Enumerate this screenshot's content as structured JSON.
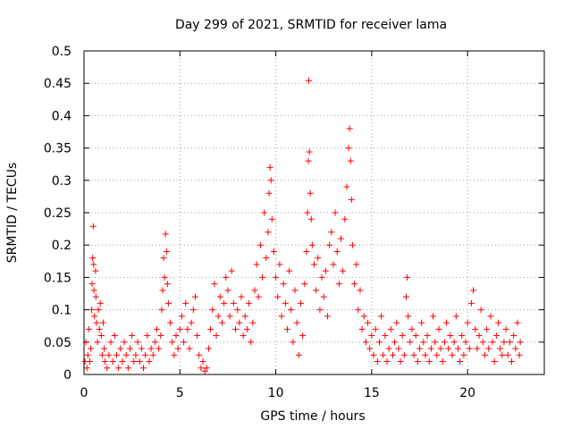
{
  "chart_data": {
    "type": "scatter",
    "title": "Day 299 of 2021, SRMTID for receiver lama",
    "xlabel": "GPS time / hours",
    "ylabel": "SRMTID / TECUs",
    "xlim": [
      0,
      24
    ],
    "ylim": [
      0,
      0.5
    ],
    "xticks": [
      0,
      5,
      10,
      15,
      20
    ],
    "xtick_labels": [
      "0",
      "5",
      "10",
      "15",
      "20"
    ],
    "yticks": [
      0,
      0.05,
      0.1,
      0.15,
      0.2,
      0.25,
      0.3,
      0.35,
      0.4,
      0.45,
      0.5
    ],
    "ytick_labels": [
      "0",
      "0.05",
      "0.1",
      "0.15",
      "0.2",
      "0.25",
      "0.3",
      "0.35",
      "0.4",
      "0.45",
      "0.5"
    ],
    "grid": true,
    "marker": "plus",
    "color": "#ff0000",
    "series": [
      {
        "name": "SRMTID",
        "points": [
          [
            0.05,
            0.02
          ],
          [
            0.1,
            0.05
          ],
          [
            0.15,
            0.01
          ],
          [
            0.2,
            0.03
          ],
          [
            0.25,
            0.07
          ],
          [
            0.3,
            0.02
          ],
          [
            0.35,
            0.04
          ],
          [
            0.4,
            0.1
          ],
          [
            0.42,
            0.14
          ],
          [
            0.45,
            0.18
          ],
          [
            0.48,
            0.229
          ],
          [
            0.5,
            0.17
          ],
          [
            0.52,
            0.13
          ],
          [
            0.55,
            0.09
          ],
          [
            0.6,
            0.16
          ],
          [
            0.62,
            0.12
          ],
          [
            0.65,
            0.08
          ],
          [
            0.7,
            0.05
          ],
          [
            0.75,
            0.1
          ],
          [
            0.8,
            0.07
          ],
          [
            0.85,
            0.11
          ],
          [
            0.9,
            0.06
          ],
          [
            0.95,
            0.03
          ],
          [
            1.0,
            0.08
          ],
          [
            1.05,
            0.04
          ],
          [
            1.1,
            0.02
          ],
          [
            1.2,
            0.01
          ],
          [
            1.3,
            0.03
          ],
          [
            1.4,
            0.05
          ],
          [
            1.5,
            0.02
          ],
          [
            1.6,
            0.06
          ],
          [
            1.7,
            0.03
          ],
          [
            1.8,
            0.01
          ],
          [
            1.9,
            0.04
          ],
          [
            2.0,
            0.02
          ],
          [
            2.1,
            0.05
          ],
          [
            2.2,
            0.03
          ],
          [
            2.3,
            0.01
          ],
          [
            2.4,
            0.04
          ],
          [
            2.5,
            0.06
          ],
          [
            2.6,
            0.02
          ],
          [
            2.7,
            0.03
          ],
          [
            2.8,
            0.05
          ],
          [
            2.9,
            0.02
          ],
          [
            3.0,
            0.04
          ],
          [
            3.1,
            0.01
          ],
          [
            3.2,
            0.03
          ],
          [
            3.3,
            0.06
          ],
          [
            3.4,
            0.02
          ],
          [
            3.5,
            0.04
          ],
          [
            3.6,
            0.03
          ],
          [
            3.7,
            0.05
          ],
          [
            3.8,
            0.07
          ],
          [
            3.9,
            0.04
          ],
          [
            4.0,
            0.06
          ],
          [
            4.05,
            0.1
          ],
          [
            4.1,
            0.13
          ],
          [
            4.15,
            0.18
          ],
          [
            4.2,
            0.15
          ],
          [
            4.25,
            0.217
          ],
          [
            4.3,
            0.19
          ],
          [
            4.35,
            0.14
          ],
          [
            4.4,
            0.11
          ],
          [
            4.5,
            0.08
          ],
          [
            4.6,
            0.05
          ],
          [
            4.7,
            0.03
          ],
          [
            4.8,
            0.06
          ],
          [
            4.9,
            0.04
          ],
          [
            5.0,
            0.07
          ],
          [
            5.1,
            0.09
          ],
          [
            5.2,
            0.05
          ],
          [
            5.3,
            0.11
          ],
          [
            5.4,
            0.07
          ],
          [
            5.5,
            0.04
          ],
          [
            5.6,
            0.08
          ],
          [
            5.7,
            0.1
          ],
          [
            5.8,
            0.12
          ],
          [
            5.9,
            0.06
          ],
          [
            6.0,
            0.03
          ],
          [
            6.1,
            0.01
          ],
          [
            6.2,
            0.02
          ],
          [
            6.3,
            0.005
          ],
          [
            6.4,
            0.01
          ],
          [
            6.5,
            0.04
          ],
          [
            6.6,
            0.07
          ],
          [
            6.7,
            0.1
          ],
          [
            6.8,
            0.14
          ],
          [
            6.9,
            0.06
          ],
          [
            7.0,
            0.09
          ],
          [
            7.1,
            0.12
          ],
          [
            7.2,
            0.08
          ],
          [
            7.3,
            0.11
          ],
          [
            7.4,
            0.15
          ],
          [
            7.5,
            0.13
          ],
          [
            7.6,
            0.09
          ],
          [
            7.7,
            0.16
          ],
          [
            7.8,
            0.11
          ],
          [
            7.9,
            0.07
          ],
          [
            8.0,
            0.1
          ],
          [
            8.1,
            0.08
          ],
          [
            8.2,
            0.12
          ],
          [
            8.3,
            0.06
          ],
          [
            8.4,
            0.09
          ],
          [
            8.5,
            0.07
          ],
          [
            8.6,
            0.11
          ],
          [
            8.7,
            0.05
          ],
          [
            8.8,
            0.08
          ],
          [
            8.9,
            0.13
          ],
          [
            9.0,
            0.17
          ],
          [
            9.1,
            0.12
          ],
          [
            9.2,
            0.2
          ],
          [
            9.3,
            0.15
          ],
          [
            9.4,
            0.25
          ],
          [
            9.5,
            0.18
          ],
          [
            9.6,
            0.22
          ],
          [
            9.65,
            0.28
          ],
          [
            9.7,
            0.32
          ],
          [
            9.75,
            0.3
          ],
          [
            9.8,
            0.24
          ],
          [
            9.9,
            0.19
          ],
          [
            10.0,
            0.15
          ],
          [
            10.1,
            0.12
          ],
          [
            10.2,
            0.17
          ],
          [
            10.3,
            0.09
          ],
          [
            10.4,
            0.14
          ],
          [
            10.5,
            0.11
          ],
          [
            10.6,
            0.07
          ],
          [
            10.7,
            0.16
          ],
          [
            10.8,
            0.1
          ],
          [
            10.9,
            0.05
          ],
          [
            11.0,
            0.13
          ],
          [
            11.1,
            0.08
          ],
          [
            11.2,
            0.03
          ],
          [
            11.3,
            0.11
          ],
          [
            11.4,
            0.06
          ],
          [
            11.5,
            0.14
          ],
          [
            11.6,
            0.19
          ],
          [
            11.65,
            0.25
          ],
          [
            11.7,
            0.33
          ],
          [
            11.72,
            0.454
          ],
          [
            11.75,
            0.344
          ],
          [
            11.8,
            0.28
          ],
          [
            11.85,
            0.24
          ],
          [
            11.9,
            0.2
          ],
          [
            12.0,
            0.17
          ],
          [
            12.1,
            0.13
          ],
          [
            12.2,
            0.18
          ],
          [
            12.3,
            0.1
          ],
          [
            12.4,
            0.15
          ],
          [
            12.5,
            0.12
          ],
          [
            12.6,
            0.16
          ],
          [
            12.7,
            0.09
          ],
          [
            12.8,
            0.2
          ],
          [
            12.9,
            0.22
          ],
          [
            13.0,
            0.17
          ],
          [
            13.1,
            0.25
          ],
          [
            13.2,
            0.19
          ],
          [
            13.3,
            0.14
          ],
          [
            13.4,
            0.21
          ],
          [
            13.5,
            0.16
          ],
          [
            13.6,
            0.24
          ],
          [
            13.7,
            0.29
          ],
          [
            13.8,
            0.35
          ],
          [
            13.85,
            0.38
          ],
          [
            13.9,
            0.33
          ],
          [
            13.95,
            0.27
          ],
          [
            14.0,
            0.2
          ],
          [
            14.1,
            0.14
          ],
          [
            14.2,
            0.17
          ],
          [
            14.3,
            0.1
          ],
          [
            14.4,
            0.13
          ],
          [
            14.5,
            0.07
          ],
          [
            14.6,
            0.09
          ],
          [
            14.7,
            0.05
          ],
          [
            14.8,
            0.08
          ],
          [
            14.9,
            0.04
          ],
          [
            15.0,
            0.06
          ],
          [
            15.1,
            0.03
          ],
          [
            15.2,
            0.07
          ],
          [
            15.3,
            0.02
          ],
          [
            15.4,
            0.05
          ],
          [
            15.5,
            0.09
          ],
          [
            15.6,
            0.03
          ],
          [
            15.7,
            0.06
          ],
          [
            15.8,
            0.02
          ],
          [
            15.9,
            0.04
          ],
          [
            16.0,
            0.07
          ],
          [
            16.1,
            0.03
          ],
          [
            16.2,
            0.05
          ],
          [
            16.3,
            0.08
          ],
          [
            16.4,
            0.04
          ],
          [
            16.5,
            0.02
          ],
          [
            16.6,
            0.06
          ],
          [
            16.7,
            0.03
          ],
          [
            16.8,
            0.12
          ],
          [
            16.85,
            0.15
          ],
          [
            16.9,
            0.09
          ],
          [
            17.0,
            0.05
          ],
          [
            17.1,
            0.07
          ],
          [
            17.2,
            0.03
          ],
          [
            17.3,
            0.06
          ],
          [
            17.4,
            0.02
          ],
          [
            17.5,
            0.04
          ],
          [
            17.6,
            0.08
          ],
          [
            17.7,
            0.05
          ],
          [
            17.8,
            0.03
          ],
          [
            17.9,
            0.06
          ],
          [
            18.0,
            0.02
          ],
          [
            18.1,
            0.04
          ],
          [
            18.2,
            0.09
          ],
          [
            18.3,
            0.05
          ],
          [
            18.4,
            0.03
          ],
          [
            18.5,
            0.07
          ],
          [
            18.6,
            0.04
          ],
          [
            18.7,
            0.02
          ],
          [
            18.8,
            0.05
          ],
          [
            18.9,
            0.08
          ],
          [
            19.0,
            0.04
          ],
          [
            19.1,
            0.06
          ],
          [
            19.2,
            0.03
          ],
          [
            19.3,
            0.05
          ],
          [
            19.4,
            0.09
          ],
          [
            19.5,
            0.04
          ],
          [
            19.6,
            0.02
          ],
          [
            19.7,
            0.06
          ],
          [
            19.8,
            0.03
          ],
          [
            19.9,
            0.05
          ],
          [
            20.0,
            0.08
          ],
          [
            20.1,
            0.04
          ],
          [
            20.2,
            0.11
          ],
          [
            20.3,
            0.13
          ],
          [
            20.4,
            0.07
          ],
          [
            20.5,
            0.04
          ],
          [
            20.6,
            0.06
          ],
          [
            20.7,
            0.1
          ],
          [
            20.8,
            0.05
          ],
          [
            20.9,
            0.03
          ],
          [
            21.0,
            0.07
          ],
          [
            21.1,
            0.04
          ],
          [
            21.2,
            0.09
          ],
          [
            21.3,
            0.05
          ],
          [
            21.4,
            0.02
          ],
          [
            21.5,
            0.06
          ],
          [
            21.6,
            0.08
          ],
          [
            21.7,
            0.04
          ],
          [
            21.8,
            0.03
          ],
          [
            21.9,
            0.05
          ],
          [
            22.0,
            0.07
          ],
          [
            22.1,
            0.03
          ],
          [
            22.2,
            0.05
          ],
          [
            22.3,
            0.02
          ],
          [
            22.4,
            0.06
          ],
          [
            22.5,
            0.04
          ],
          [
            22.6,
            0.08
          ],
          [
            22.7,
            0.03
          ],
          [
            22.75,
            0.05
          ]
        ]
      }
    ]
  }
}
